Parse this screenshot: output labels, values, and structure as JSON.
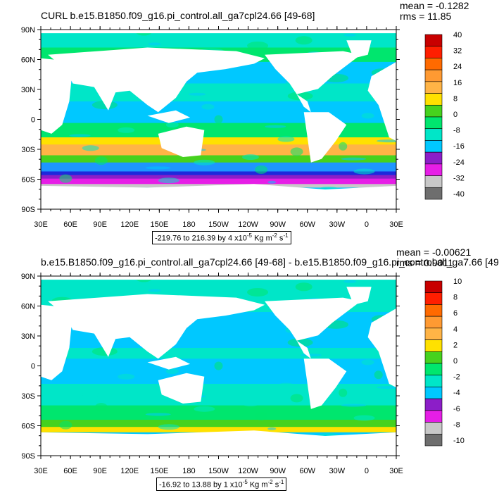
{
  "panels": [
    {
      "title": "CURL b.e15.B1850.f09_g16.pi_control.all_ga7cpl24.66 [49-68]",
      "mean": "mean = -0.1282",
      "rms": "rms = 11.85",
      "range_text": "-219.76 to 216.39 by 4 x10",
      "range_exp": "-5",
      "range_units": " Kg m",
      "range_units_exp": "-2",
      "range_s": " s",
      "range_s_exp": "-1",
      "colorbar_labels": [
        "40",
        "32",
        "24",
        "16",
        "8",
        "0",
        "-8",
        "-16",
        "-24",
        "-32",
        "-40"
      ]
    },
    {
      "title": "b.e15.B1850.f09_g16.pi_control.all_ga7cpl24.66 [49-68] - b.e15.B1850.f09_g16.pi_control.all_ga7.66 [49",
      "mean": "mean = -0.00621",
      "rms": "rms = 0.9011",
      "range_text": "-16.92 to 13.88 by 1 x10",
      "range_exp": "-5",
      "range_units": " Kg m",
      "range_units_exp": "-2",
      "range_s": " s",
      "range_s_exp": "-1",
      "colorbar_labels": [
        "10",
        "8",
        "6",
        "4",
        "2",
        "0",
        "-2",
        "-4",
        "-6",
        "-8",
        "-10"
      ]
    }
  ],
  "lat_labels": [
    "90N",
    "60N",
    "30N",
    "0",
    "30S",
    "60S",
    "90S"
  ],
  "lon_labels": [
    "30E",
    "60E",
    "90E",
    "120E",
    "150E",
    "180",
    "150W",
    "120W",
    "90W",
    "60W",
    "30W",
    "0",
    "30E"
  ],
  "colors": {
    "palette": [
      "#c80000",
      "#ff1e00",
      "#ff6a00",
      "#ff9a32",
      "#ffb446",
      "#ffe100",
      "#46d21e",
      "#00e66e",
      "#00e6c8",
      "#00c8ff",
      "#1e96ff",
      "#0064ff",
      "#1e28dc",
      "#8c1ec8",
      "#e61ee6",
      "#c8c8c8",
      "#6e6e6e"
    ],
    "land": "#ffffff",
    "frame": "#000000"
  }
}
